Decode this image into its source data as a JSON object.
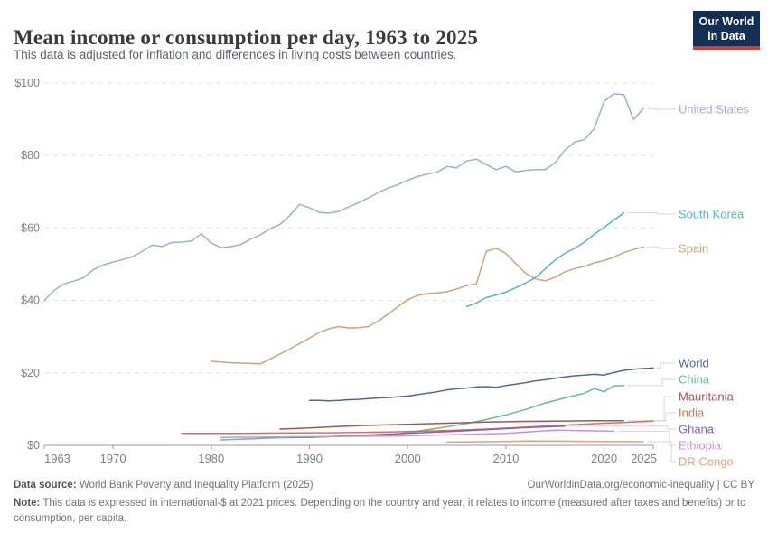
{
  "header": {
    "title": "Mean income or consumption per day, 1963 to 2025",
    "subtitle": "This data is adjusted for inflation and differences in living costs between countries.",
    "logo": {
      "line1": "Our World",
      "line2": "in Data",
      "bg_color": "#132f56",
      "accent_color": "#dc392d"
    }
  },
  "chart_data": {
    "type": "line",
    "title": "Mean income or consumption per day, 1963 to 2025",
    "xlabel": "",
    "ylabel": "",
    "grid": "horizontal-dashed",
    "legend_position": "right-end-labels",
    "xlim": [
      1963,
      2025
    ],
    "ylim": [
      0,
      100
    ],
    "x_ticks": [
      1963,
      1970,
      1980,
      1990,
      2000,
      2010,
      2020,
      2025
    ],
    "y_ticks": [
      0,
      20,
      40,
      60,
      80,
      100
    ],
    "y_tick_labels": [
      "$0",
      "$20",
      "$40",
      "$60",
      "$80",
      "$100"
    ],
    "series": [
      {
        "name": "United States",
        "color": "#9bb0cf",
        "points": [
          [
            1963,
            40
          ],
          [
            1964,
            42.8
          ],
          [
            1965,
            44.6
          ],
          [
            1966,
            45.3
          ],
          [
            1967,
            46.3
          ],
          [
            1968,
            48.5
          ],
          [
            1969,
            49.8
          ],
          [
            1970,
            50.6
          ],
          [
            1971,
            51.3
          ],
          [
            1972,
            52.1
          ],
          [
            1973,
            53.6
          ],
          [
            1974,
            55.3
          ],
          [
            1975,
            54.9
          ],
          [
            1976,
            56.0
          ],
          [
            1977,
            56.1
          ],
          [
            1978,
            56.4
          ],
          [
            1979,
            58.4
          ],
          [
            1980,
            55.8
          ],
          [
            1981,
            54.6
          ],
          [
            1982,
            54.9
          ],
          [
            1983,
            55.4
          ],
          [
            1984,
            56.9
          ],
          [
            1985,
            58.1
          ],
          [
            1986,
            59.8
          ],
          [
            1987,
            61.0
          ],
          [
            1988,
            63.5
          ],
          [
            1989,
            66.5
          ],
          [
            1990,
            65.6
          ],
          [
            1991,
            64.3
          ],
          [
            1992,
            64.1
          ],
          [
            1993,
            64.6
          ],
          [
            1994,
            65.8
          ],
          [
            1995,
            67.0
          ],
          [
            1996,
            68.3
          ],
          [
            1997,
            69.8
          ],
          [
            1998,
            71.0
          ],
          [
            1999,
            72.0
          ],
          [
            2000,
            73.2
          ],
          [
            2001,
            74.2
          ],
          [
            2002,
            74.9
          ],
          [
            2003,
            75.4
          ],
          [
            2004,
            77.0
          ],
          [
            2005,
            76.6
          ],
          [
            2006,
            78.5
          ],
          [
            2007,
            79.0
          ],
          [
            2008,
            77.5
          ],
          [
            2009,
            76.1
          ],
          [
            2010,
            77.0
          ],
          [
            2011,
            75.5
          ],
          [
            2012,
            75.9
          ],
          [
            2013,
            76.1
          ],
          [
            2014,
            76.1
          ],
          [
            2015,
            78.0
          ],
          [
            2016,
            81.5
          ],
          [
            2017,
            83.7
          ],
          [
            2018,
            84.4
          ],
          [
            2019,
            87.5
          ],
          [
            2020,
            95.0
          ],
          [
            2021,
            97.0
          ],
          [
            2022,
            96.8
          ],
          [
            2023,
            90.0
          ],
          [
            2024,
            93.0
          ]
        ]
      },
      {
        "name": "South Korea",
        "color": "#55b3c5",
        "points": [
          [
            2006,
            38.3
          ],
          [
            2007,
            39.3
          ],
          [
            2008,
            40.8
          ],
          [
            2009,
            41.5
          ],
          [
            2010,
            42.3
          ],
          [
            2011,
            43.5
          ],
          [
            2012,
            44.8
          ],
          [
            2013,
            46.3
          ],
          [
            2014,
            48.7
          ],
          [
            2015,
            51.2
          ],
          [
            2016,
            53.0
          ],
          [
            2017,
            54.4
          ],
          [
            2018,
            56.1
          ],
          [
            2019,
            58.3
          ],
          [
            2020,
            60.2
          ],
          [
            2021,
            62.2
          ],
          [
            2022,
            64.2
          ]
        ]
      },
      {
        "name": "Spain",
        "color": "#cba47d",
        "points": [
          [
            1980,
            23.2
          ],
          [
            1981,
            23.0
          ],
          [
            1982,
            22.8
          ],
          [
            1983,
            22.7
          ],
          [
            1984,
            22.6
          ],
          [
            1985,
            22.5
          ],
          [
            1986,
            23.8
          ],
          [
            1987,
            25.2
          ],
          [
            1988,
            26.6
          ],
          [
            1989,
            28.1
          ],
          [
            1990,
            29.6
          ],
          [
            1991,
            31.2
          ],
          [
            1992,
            32.2
          ],
          [
            1993,
            32.8
          ],
          [
            1994,
            32.4
          ],
          [
            1995,
            32.5
          ],
          [
            1996,
            32.8
          ],
          [
            1997,
            34.3
          ],
          [
            1998,
            36.2
          ],
          [
            1999,
            38.3
          ],
          [
            2000,
            40.2
          ],
          [
            2001,
            41.4
          ],
          [
            2002,
            41.9
          ],
          [
            2003,
            42.1
          ],
          [
            2004,
            42.4
          ],
          [
            2005,
            43.2
          ],
          [
            2006,
            44.1
          ],
          [
            2007,
            44.6
          ],
          [
            2008,
            53.6
          ],
          [
            2009,
            54.4
          ],
          [
            2010,
            53.0
          ],
          [
            2011,
            50.2
          ],
          [
            2012,
            47.5
          ],
          [
            2013,
            46.0
          ],
          [
            2014,
            45.4
          ],
          [
            2015,
            46.4
          ],
          [
            2016,
            47.9
          ],
          [
            2017,
            48.8
          ],
          [
            2018,
            49.4
          ],
          [
            2019,
            50.4
          ],
          [
            2020,
            51.0
          ],
          [
            2021,
            52.0
          ],
          [
            2022,
            53.2
          ],
          [
            2023,
            54.1
          ],
          [
            2024,
            54.8
          ]
        ]
      },
      {
        "name": "World",
        "color": "#4c6a93",
        "points": [
          [
            1990,
            12.4
          ],
          [
            1991,
            12.4
          ],
          [
            1992,
            12.3
          ],
          [
            1993,
            12.4
          ],
          [
            1994,
            12.6
          ],
          [
            1995,
            12.7
          ],
          [
            1996,
            12.9
          ],
          [
            1997,
            13.1
          ],
          [
            1998,
            13.2
          ],
          [
            1999,
            13.4
          ],
          [
            2000,
            13.6
          ],
          [
            2001,
            14.0
          ],
          [
            2002,
            14.4
          ],
          [
            2003,
            14.8
          ],
          [
            2004,
            15.3
          ],
          [
            2005,
            15.6
          ],
          [
            2006,
            15.8
          ],
          [
            2007,
            16.1
          ],
          [
            2008,
            16.2
          ],
          [
            2009,
            16.0
          ],
          [
            2010,
            16.5
          ],
          [
            2011,
            16.9
          ],
          [
            2012,
            17.3
          ],
          [
            2013,
            17.8
          ],
          [
            2014,
            18.1
          ],
          [
            2015,
            18.5
          ],
          [
            2016,
            18.9
          ],
          [
            2017,
            19.2
          ],
          [
            2018,
            19.4
          ],
          [
            2019,
            19.6
          ],
          [
            2020,
            19.4
          ],
          [
            2021,
            20.1
          ],
          [
            2022,
            20.7
          ],
          [
            2023,
            21.0
          ],
          [
            2024,
            21.2
          ],
          [
            2025,
            21.4
          ]
        ]
      },
      {
        "name": "China",
        "color": "#63bb9b",
        "points": [
          [
            1981,
            1.5
          ],
          [
            1983,
            1.7
          ],
          [
            1985,
            1.9
          ],
          [
            1987,
            2.1
          ],
          [
            1989,
            2.2
          ],
          [
            1990,
            2.2
          ],
          [
            1992,
            2.4
          ],
          [
            1994,
            2.6
          ],
          [
            1996,
            2.8
          ],
          [
            1998,
            2.9
          ],
          [
            2000,
            3.5
          ],
          [
            2002,
            4.3
          ],
          [
            2004,
            5.1
          ],
          [
            2006,
            6.0
          ],
          [
            2008,
            7.1
          ],
          [
            2010,
            8.4
          ],
          [
            2012,
            9.9
          ],
          [
            2014,
            11.7
          ],
          [
            2016,
            13.1
          ],
          [
            2018,
            14.4
          ],
          [
            2019,
            15.7
          ],
          [
            2020,
            14.8
          ],
          [
            2021,
            16.4
          ],
          [
            2022,
            16.5
          ]
        ]
      },
      {
        "name": "Mauritania",
        "color": "#9e5755",
        "points": [
          [
            1987,
            4.5
          ],
          [
            1990,
            4.8
          ],
          [
            1993,
            5.2
          ],
          [
            1996,
            5.5
          ],
          [
            2000,
            5.8
          ],
          [
            2004,
            6.1
          ],
          [
            2008,
            6.4
          ],
          [
            2012,
            6.6
          ],
          [
            2016,
            6.7
          ],
          [
            2019,
            6.8
          ],
          [
            2022,
            6.8
          ]
        ]
      },
      {
        "name": "India",
        "color": "#cf7459",
        "points": [
          [
            1977,
            3.3
          ],
          [
            1983,
            3.3
          ],
          [
            1987,
            3.4
          ],
          [
            1993,
            3.5
          ],
          [
            1998,
            3.7
          ],
          [
            2004,
            4.1
          ],
          [
            2008,
            4.5
          ],
          [
            2011,
            4.9
          ],
          [
            2014,
            5.3
          ],
          [
            2017,
            5.7
          ],
          [
            2020,
            6.1
          ],
          [
            2022,
            6.3
          ],
          [
            2025,
            6.7
          ]
        ]
      },
      {
        "name": "Ghana",
        "color": "#8264ab",
        "points": [
          [
            1988,
            2.2
          ],
          [
            1991,
            2.3
          ],
          [
            1998,
            3.1
          ],
          [
            2005,
            3.9
          ],
          [
            2012,
            4.9
          ],
          [
            2016,
            5.3
          ]
        ]
      },
      {
        "name": "Ethiopia",
        "color": "#c794d0",
        "points": [
          [
            1981,
            2.2
          ],
          [
            1995,
            2.5
          ],
          [
            1999,
            2.6
          ],
          [
            2004,
            2.9
          ],
          [
            2010,
            3.3
          ],
          [
            2015,
            4.2
          ],
          [
            2021,
            3.9
          ]
        ]
      },
      {
        "name": "DR Congo",
        "color": "#dba380",
        "points": [
          [
            2004,
            0.9
          ],
          [
            2008,
            1.0
          ],
          [
            2012,
            1.2
          ],
          [
            2016,
            1.15
          ],
          [
            2020,
            1.05
          ],
          [
            2024,
            1.0
          ]
        ]
      }
    ]
  },
  "footer": {
    "data_source_label": "Data source:",
    "data_source_value": " World Bank Poverty and Inequality Platform (2025)",
    "citation": "OurWorldinData.org/economic-inequality | CC BY",
    "note_label": "Note:",
    "note_value": " This data is expressed in international-$ at 2021 prices. Depending on the country and year, it relates to income (measured after taxes and benefits) or to consumption, per capita."
  }
}
